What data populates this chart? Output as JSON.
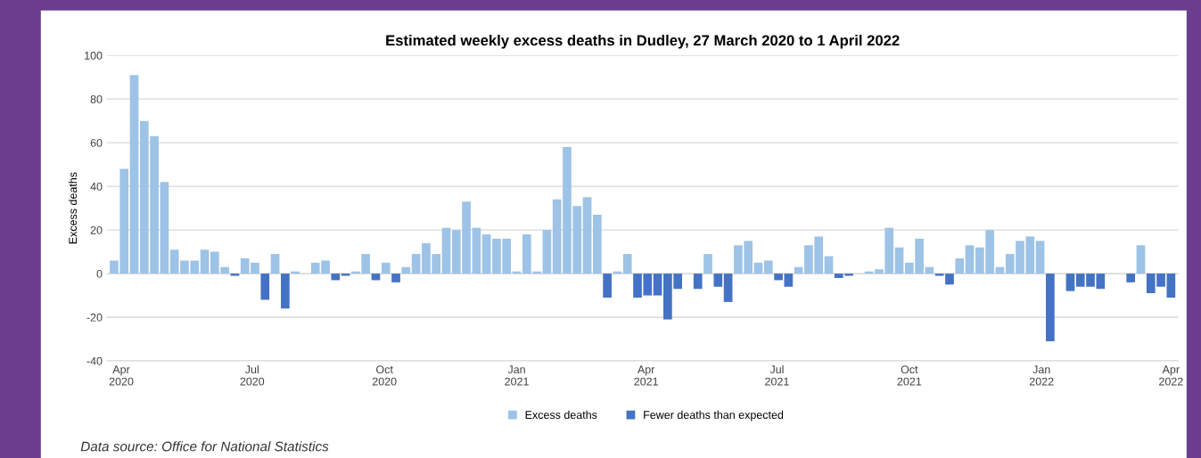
{
  "chart_data": {
    "type": "bar",
    "title": "Estimated weekly excess deaths in Dudley, 27 March 2020 to 1 April 2022",
    "ylabel": "Excess deaths",
    "x": [
      "2020-03-27",
      "2020-04-03",
      "2020-04-10",
      "2020-04-17",
      "2020-04-24",
      "2020-05-01",
      "2020-05-08",
      "2020-05-15",
      "2020-05-22",
      "2020-05-29",
      "2020-06-05",
      "2020-06-12",
      "2020-06-19",
      "2020-06-26",
      "2020-07-03",
      "2020-07-10",
      "2020-07-17",
      "2020-07-24",
      "2020-07-31",
      "2020-08-07",
      "2020-08-14",
      "2020-08-21",
      "2020-08-28",
      "2020-09-04",
      "2020-09-11",
      "2020-09-18",
      "2020-09-25",
      "2020-10-02",
      "2020-10-09",
      "2020-10-16",
      "2020-10-23",
      "2020-10-30",
      "2020-11-06",
      "2020-11-13",
      "2020-11-20",
      "2020-11-27",
      "2020-12-04",
      "2020-12-11",
      "2020-12-18",
      "2020-12-25",
      "2021-01-01",
      "2021-01-08",
      "2021-01-15",
      "2021-01-22",
      "2021-01-29",
      "2021-02-05",
      "2021-02-12",
      "2021-02-19",
      "2021-02-26",
      "2021-03-05",
      "2021-03-12",
      "2021-03-19",
      "2021-03-26",
      "2021-04-02",
      "2021-04-09",
      "2021-04-16",
      "2021-04-23",
      "2021-04-30",
      "2021-05-07",
      "2021-05-14",
      "2021-05-21",
      "2021-05-28",
      "2021-06-04",
      "2021-06-11",
      "2021-06-18",
      "2021-06-25",
      "2021-07-02",
      "2021-07-09",
      "2021-07-16",
      "2021-07-23",
      "2021-07-30",
      "2021-08-06",
      "2021-08-13",
      "2021-08-20",
      "2021-08-27",
      "2021-09-03",
      "2021-09-10",
      "2021-09-17",
      "2021-09-24",
      "2021-10-01",
      "2021-10-08",
      "2021-10-15",
      "2021-10-22",
      "2021-10-29",
      "2021-11-05",
      "2021-11-12",
      "2021-11-19",
      "2021-11-26",
      "2021-12-03",
      "2021-12-10",
      "2021-12-17",
      "2021-12-24",
      "2021-12-31",
      "2022-01-07",
      "2022-01-14",
      "2022-01-21",
      "2022-01-28",
      "2022-02-04",
      "2022-02-11",
      "2022-02-18",
      "2022-02-25",
      "2022-03-04",
      "2022-03-11",
      "2022-03-18",
      "2022-03-25",
      "2022-04-01"
    ],
    "series": [
      {
        "name": "Excess deaths",
        "color": "#9dc3e6",
        "values": [
          6,
          48,
          91,
          70,
          63,
          42,
          11,
          6,
          6,
          11,
          10,
          3,
          null,
          7,
          5,
          null,
          9,
          null,
          1,
          0,
          5,
          6,
          null,
          null,
          1,
          9,
          null,
          5,
          null,
          3,
          9,
          14,
          9,
          21,
          20,
          33,
          21,
          18,
          16,
          16,
          1,
          18,
          1,
          20,
          34,
          58,
          31,
          35,
          27,
          null,
          1,
          9,
          null,
          null,
          null,
          null,
          null,
          0,
          null,
          9,
          null,
          null,
          13,
          15,
          5,
          6,
          null,
          null,
          3,
          13,
          17,
          8,
          null,
          null,
          0,
          1,
          2,
          21,
          12,
          5,
          16,
          3,
          null,
          null,
          7,
          13,
          12,
          20,
          3,
          9,
          15,
          17,
          15,
          null,
          0,
          null,
          null,
          null,
          null,
          0,
          0,
          null,
          13,
          null,
          null,
          null
        ]
      },
      {
        "name": "Fewer deaths than expected",
        "color": "#4472c4",
        "values": [
          null,
          null,
          null,
          null,
          null,
          null,
          null,
          null,
          null,
          null,
          null,
          null,
          -1,
          null,
          null,
          -12,
          null,
          -16,
          null,
          null,
          null,
          null,
          -3,
          -1,
          null,
          null,
          -3,
          null,
          -4,
          null,
          null,
          null,
          null,
          null,
          null,
          null,
          null,
          null,
          null,
          null,
          null,
          null,
          null,
          null,
          null,
          null,
          null,
          null,
          null,
          -11,
          null,
          null,
          -11,
          -10,
          -10,
          -21,
          -7,
          null,
          -7,
          null,
          -6,
          -13,
          null,
          null,
          null,
          null,
          -3,
          -6,
          null,
          null,
          null,
          null,
          -2,
          -1,
          null,
          null,
          null,
          null,
          null,
          null,
          null,
          null,
          -1,
          -5,
          null,
          null,
          null,
          null,
          null,
          null,
          null,
          null,
          null,
          -31,
          null,
          -8,
          -6,
          -6,
          -7,
          null,
          null,
          -4,
          null,
          -9,
          -6,
          -11
        ]
      }
    ],
    "xlim": [
      "2020-03-22",
      "2022-04-06"
    ],
    "xticks": [
      {
        "value": "2020-04-01",
        "label": "Apr\n2020"
      },
      {
        "value": "2020-07-01",
        "label": "Jul\n2020"
      },
      {
        "value": "2020-10-01",
        "label": "Oct\n2020"
      },
      {
        "value": "2021-01-01",
        "label": "Jan\n2021"
      },
      {
        "value": "2021-04-01",
        "label": "Apr\n2021"
      },
      {
        "value": "2021-07-01",
        "label": "Jul\n2021"
      },
      {
        "value": "2021-10-01",
        "label": "Oct\n2021"
      },
      {
        "value": "2022-01-01",
        "label": "Jan\n2022"
      },
      {
        "value": "2022-04-01",
        "label": "Apr\n2022"
      }
    ],
    "ylim": [
      -40,
      100
    ],
    "yticks": [
      -40,
      -20,
      0,
      20,
      40,
      60,
      80,
      100
    ],
    "grid": "y",
    "legend": "bottom",
    "annotations": [
      "Data source: Office for National Statistics"
    ]
  }
}
